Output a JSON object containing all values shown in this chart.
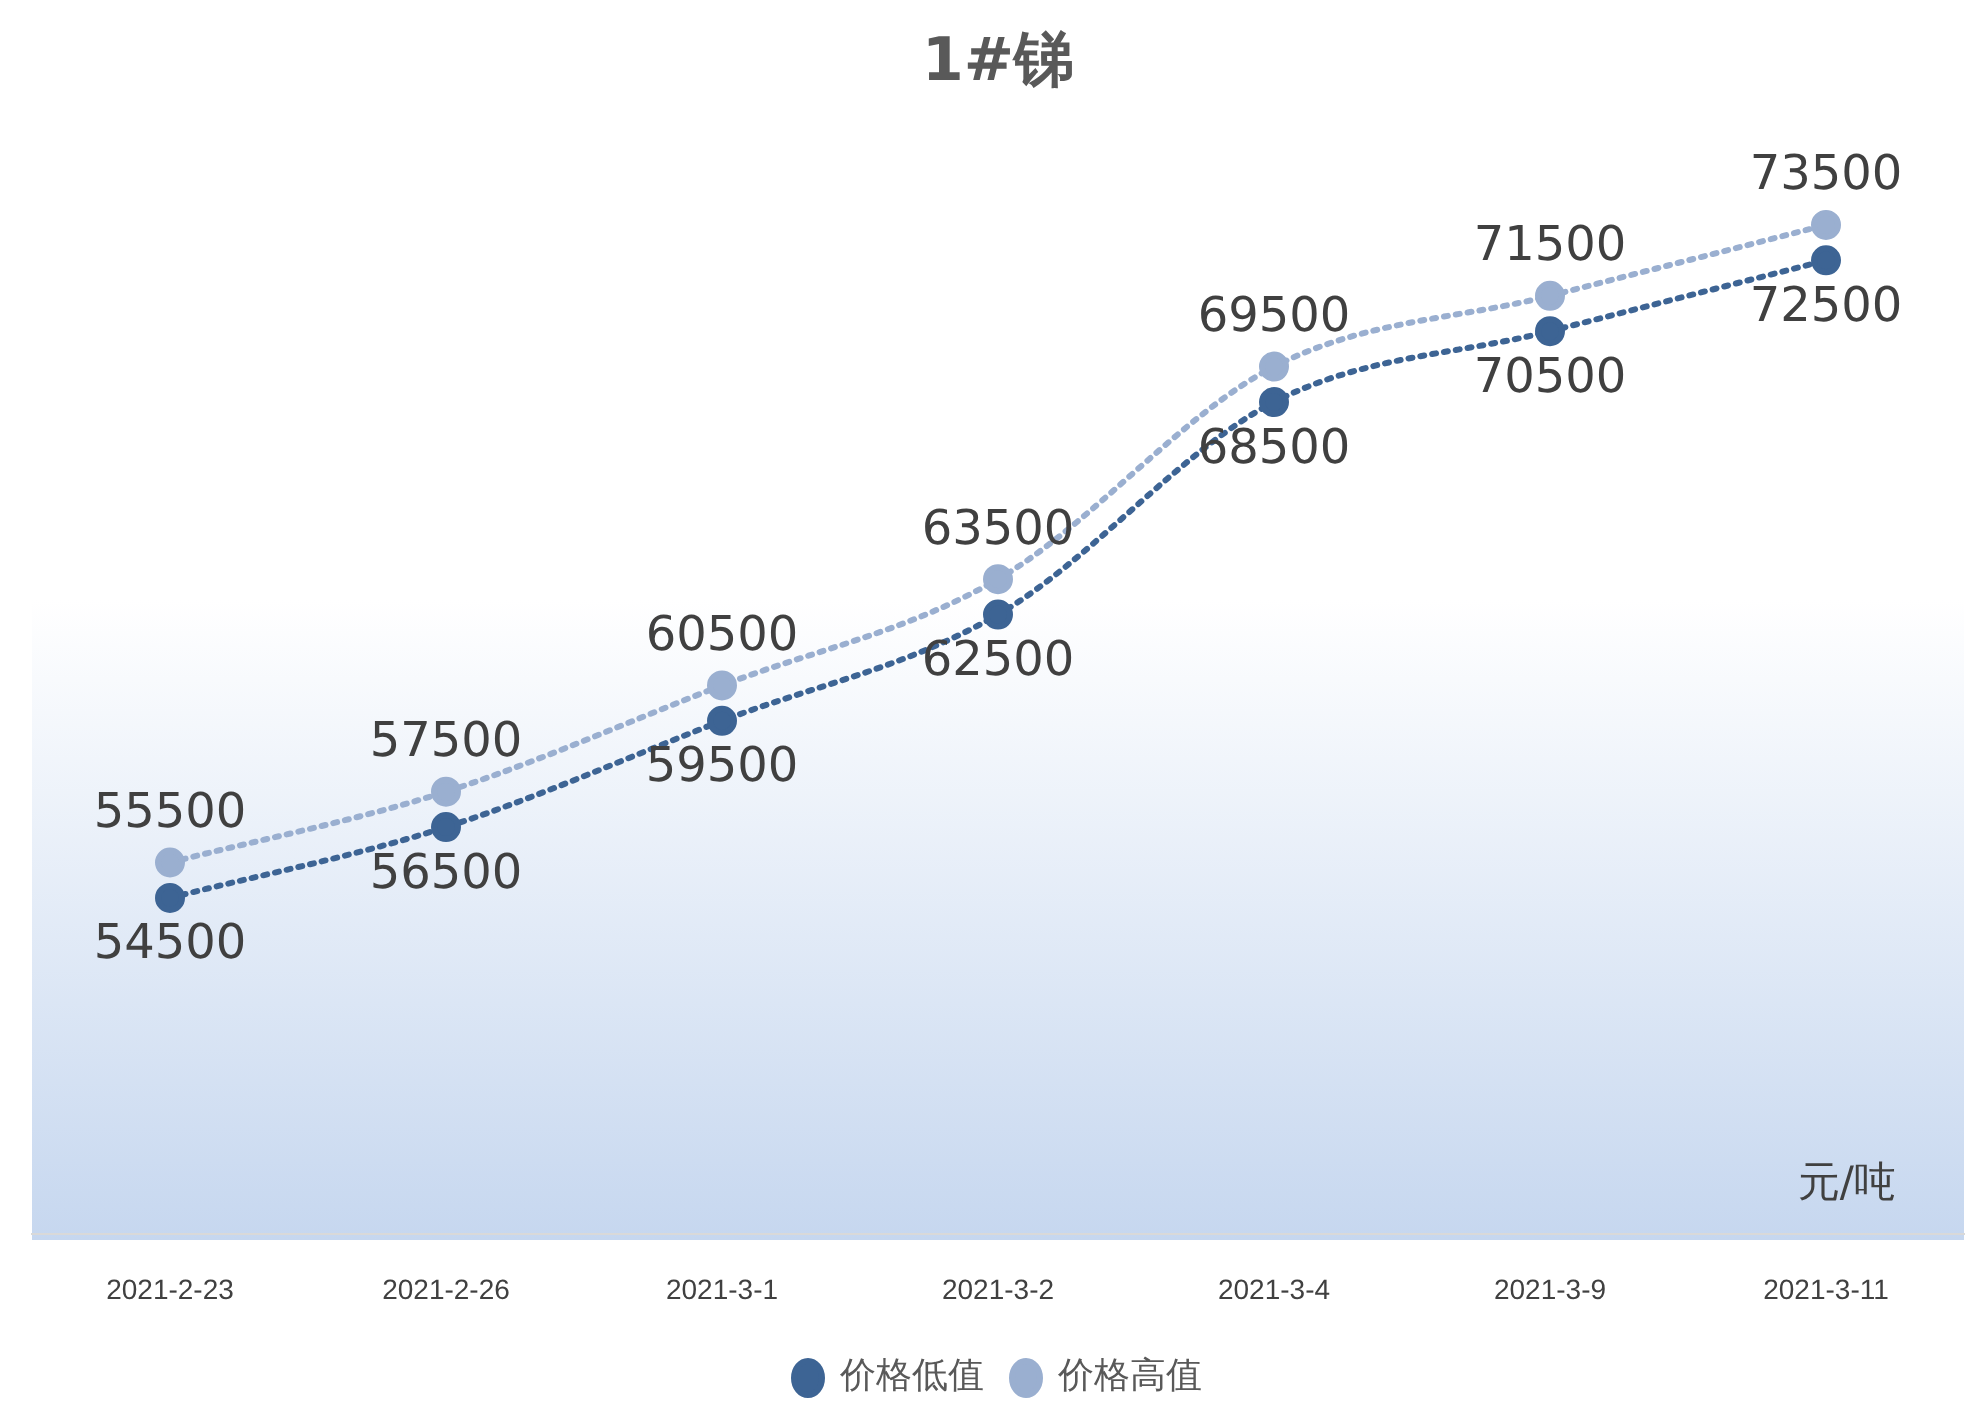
{
  "chart_data": {
    "type": "line",
    "title": "1#锑",
    "categories": [
      "2021-2-23",
      "2021-2-26",
      "2021-3-1",
      "2021-3-2",
      "2021-3-4",
      "2021-3-9",
      "2021-3-11"
    ],
    "series": [
      {
        "name": "价格低值",
        "color": "#3d6494",
        "values": [
          54500,
          56500,
          59500,
          62500,
          68500,
          70500,
          72500
        ]
      },
      {
        "name": "价格高值",
        "color": "#9aafd0",
        "values": [
          55500,
          57500,
          60500,
          63500,
          69500,
          71500,
          73500
        ]
      }
    ],
    "data_labels": true,
    "marker": "circle",
    "line_style": "dotted",
    "legend": "bottom",
    "grid": false,
    "tick_labels": "x",
    "annotations": [
      "元/吨"
    ]
  }
}
